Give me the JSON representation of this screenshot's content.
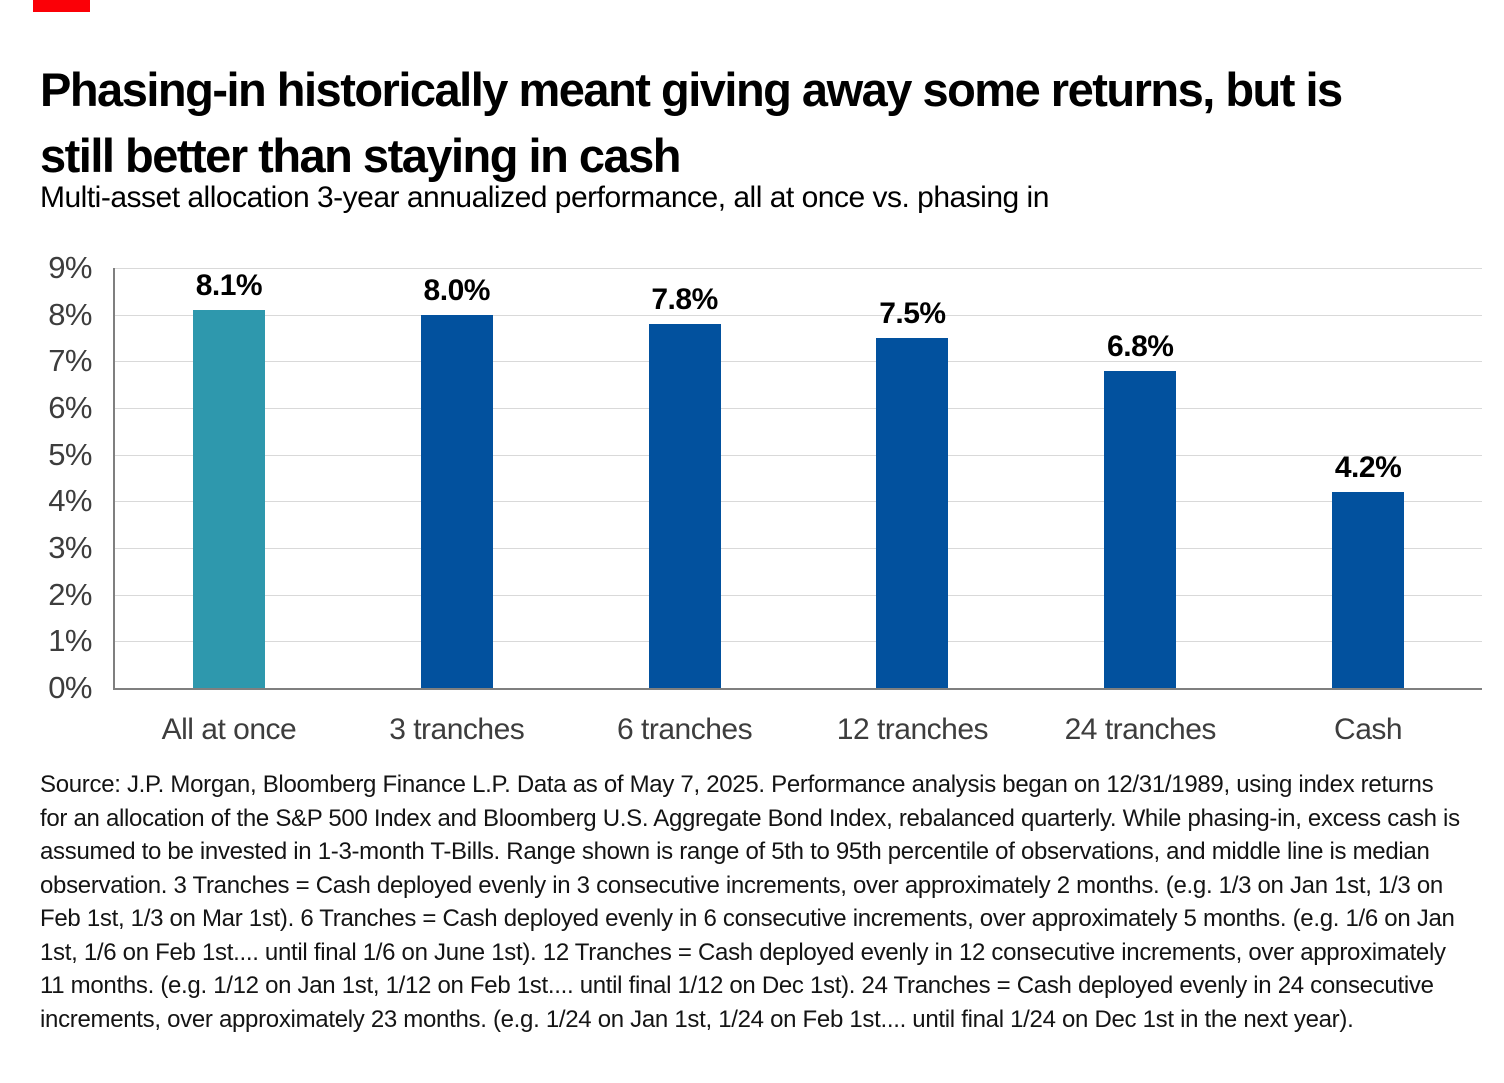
{
  "marker": {
    "color": "#fb0007"
  },
  "chart_data": {
    "type": "bar",
    "title": "Phasing-in historically meant giving away some returns, but is still better than staying in cash",
    "subtitle": "Multi-asset allocation 3-year annualized performance, all at once vs. phasing in",
    "categories": [
      "All at once",
      "3 tranches",
      "6 tranches",
      "12 tranches",
      "24 tranches",
      "Cash"
    ],
    "values": [
      8.1,
      8.0,
      7.8,
      7.5,
      6.8,
      4.2
    ],
    "value_labels": [
      "8.1%",
      "8.0%",
      "7.8%",
      "7.5%",
      "6.8%",
      "4.2%"
    ],
    "xlabel": "",
    "ylabel": "",
    "ylim": [
      0,
      9
    ],
    "ytick_labels_top_to_bottom": [
      "9%",
      "8%",
      "7%",
      "6%",
      "5%",
      "4%",
      "3%",
      "2%",
      "1%",
      "0%"
    ],
    "grid": "horizontal gridlines at every 1%, light gray",
    "legend": "none",
    "highlighted_category": "All at once",
    "colors": {
      "highlight_bar": "#2e98ad",
      "default_bar": "#02519e",
      "gridline": "#d9d9d9",
      "axis_line": "#7f7f7f",
      "tick_text": "#3d3d3d",
      "category_text": "#3d3d3d",
      "value_label_text": "#000000"
    }
  },
  "footer": {
    "source": "Source: J.P. Morgan, Bloomberg Finance L.P. Data as of May 7, 2025. Performance analysis began on 12/31/1989, using index returns for an allocation of the S&P 500 Index and Bloomberg U.S. Aggregate Bond Index, rebalanced quarterly. While phasing-in, excess cash is assumed to be invested in 1-3-month T-Bills. Range shown is range of 5th to 95th percentile of observations, and middle line is median observation. 3 Tranches = Cash deployed evenly in 3 consecutive increments, over approximately 2 months. (e.g. 1/3 on Jan 1st, 1/3 on Feb 1st, 1/3 on Mar 1st). 6 Tranches = Cash deployed evenly in 6 consecutive increments, over approximately 5 months. (e.g. 1/6 on Jan 1st, 1/6 on Feb 1st.... until final 1/6 on June 1st). 12 Tranches = Cash deployed evenly in 12 consecutive increments, over approximately 11 months. (e.g. 1/12 on Jan 1st, 1/12 on Feb 1st.... until final 1/12 on Dec 1st). 24 Tranches = Cash deployed evenly in 24 consecutive increments, over approximately 23 months. (e.g. 1/24 on Jan 1st, 1/24 on Feb 1st.... until final 1/24 on Dec 1st in the next year)."
  }
}
